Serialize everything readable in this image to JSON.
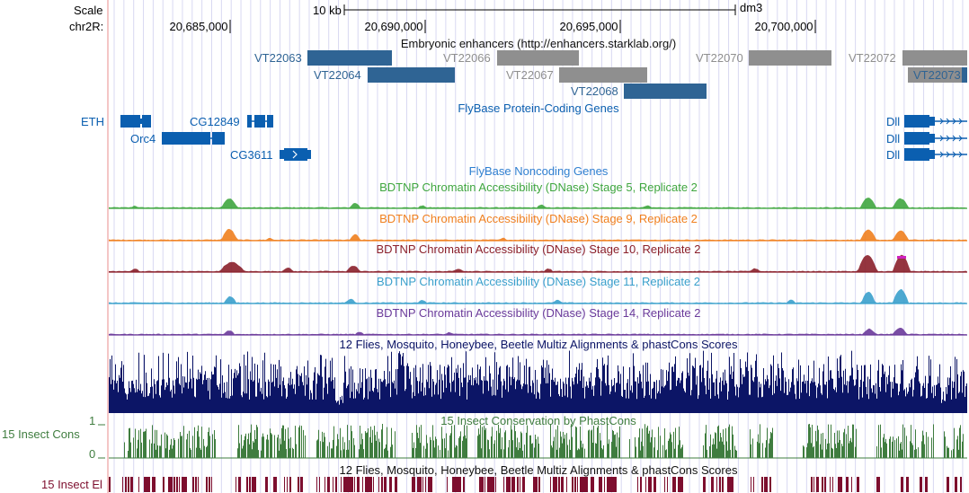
{
  "assembly": "dm3",
  "scale": {
    "label": "Scale",
    "length": "10 kb"
  },
  "ruler": {
    "chrom_label": "chr2R:",
    "ticks": [
      "20,685,000",
      "20,690,000",
      "20,695,000",
      "20,700,000"
    ]
  },
  "colors": {
    "enhancer_active": "#2f6494",
    "enhancer_inactive": "#8f8f8f",
    "gene": "#0b5fb0",
    "noncoding": "#2f7fd0",
    "grid": "#d8d8f2",
    "left_guide": "#f0b4b4",
    "multiz": "#0c1566",
    "phastcons": "#3f7d3f",
    "elements": "#7d0e2e"
  },
  "tracks": {
    "enhancers": {
      "title": "Embryonic enhancers (http://enhancers.starklab.org/)",
      "items": [
        {
          "name": "VT22063",
          "active": true
        },
        {
          "name": "VT22064",
          "active": true
        },
        {
          "name": "VT22066",
          "active": false
        },
        {
          "name": "VT22067",
          "active": false
        },
        {
          "name": "VT22068",
          "active": true
        },
        {
          "name": "VT22070",
          "active": false
        },
        {
          "name": "VT22072",
          "active": false
        },
        {
          "name": "VT22073",
          "active": true
        }
      ]
    },
    "genes": {
      "title": "FlyBase Protein-Coding Genes",
      "items": [
        "ETH",
        "Orc4",
        "CG12849",
        "CG3611",
        "Dll",
        "Dll",
        "Dll"
      ]
    },
    "noncoding": {
      "title": "FlyBase Noncoding Genes"
    },
    "dnase": [
      {
        "title": "BDTNP Chromatin Accessibility (DNase) Stage 5, Replicate 2",
        "color": "#3fa63f"
      },
      {
        "title": "BDTNP Chromatin Accessibility (DNase) Stage 9, Replicate 2",
        "color": "#f07f1e"
      },
      {
        "title": "BDTNP Chromatin Accessibility (DNase) Stage 10, Replicate 2",
        "color": "#8a1f2a"
      },
      {
        "title": "BDTNP Chromatin Accessibility (DNase) Stage 11, Replicate 2",
        "color": "#3aa0cc"
      },
      {
        "title": "BDTNP Chromatin Accessibility (DNase) Stage 14, Replicate 2",
        "color": "#6a3a9a"
      }
    ],
    "multiz": {
      "title": "12 Flies, Mosquito, Honeybee, Beetle Multiz Alignments & phastCons Scores"
    },
    "phastcons": {
      "title": "15 Insect Conservation by PhastCons",
      "side_label": "15 Insect Cons",
      "axis_max": "1",
      "axis_min": "0"
    },
    "elements": {
      "title": "12 Flies, Mosquito, Honeybee, Beetle Multiz Alignments & phastCons Scores",
      "side_label": "15 Insect El"
    }
  }
}
